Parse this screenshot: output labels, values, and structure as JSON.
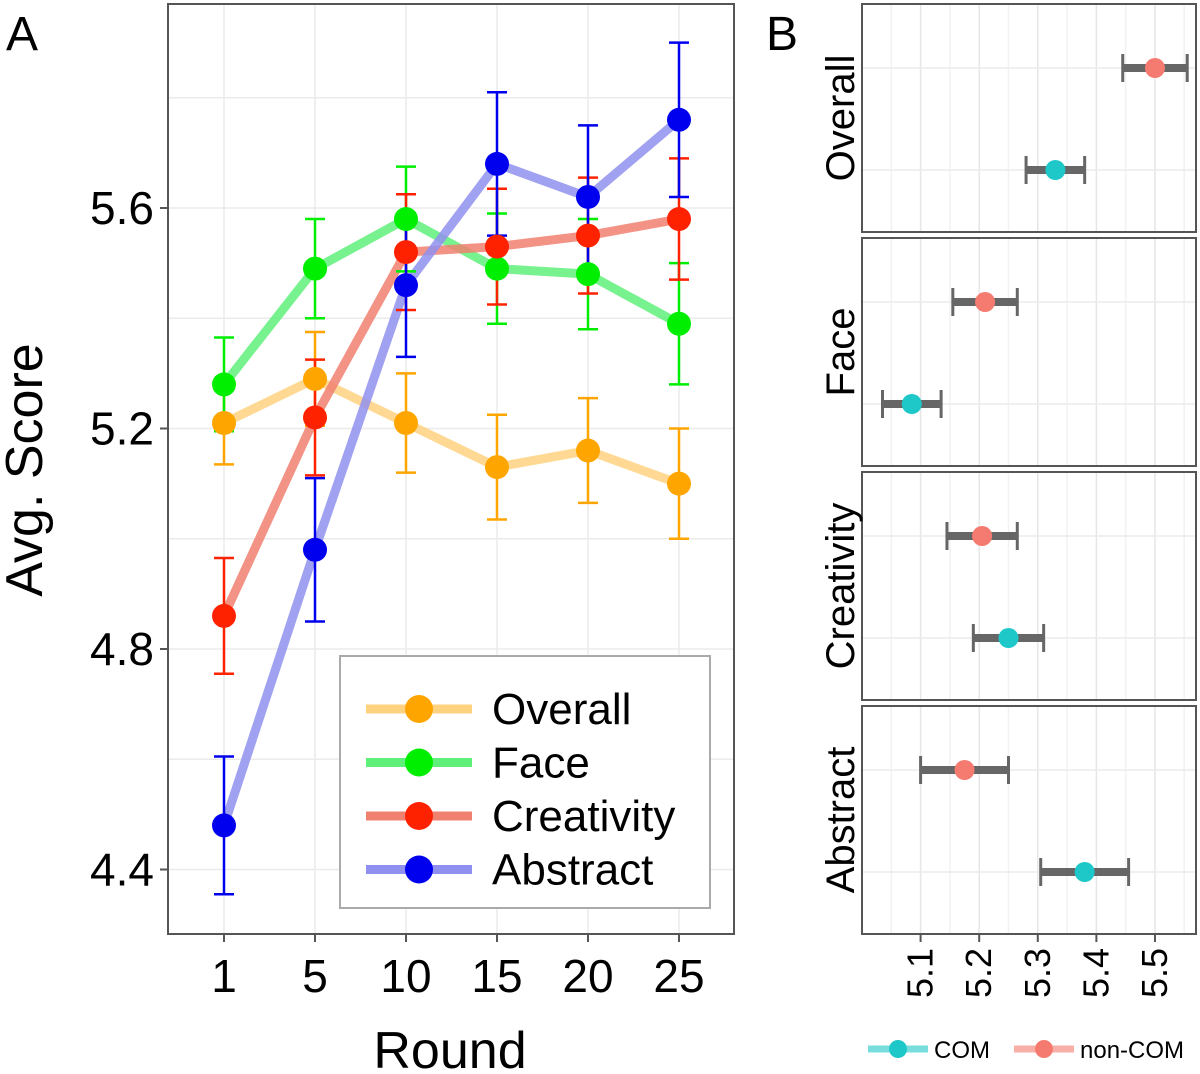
{
  "panel_a_label": "A",
  "panel_b_label": "B",
  "chart_data": [
    {
      "type": "line",
      "panel": "A",
      "title": "",
      "xlabel": "Round",
      "ylabel": "Avg. Score",
      "categories": [
        "1",
        "5",
        "10",
        "15",
        "20",
        "25"
      ],
      "ylim": [
        4.28,
        5.96
      ],
      "yticks": [
        4.4,
        4.8,
        5.2,
        5.6
      ],
      "ytick_labels": [
        "4.4",
        "4.8",
        "5.2",
        "5.6"
      ],
      "grid": true,
      "legend_position": "bottom-right",
      "series": [
        {
          "name": "Overall",
          "color": "#FFA500",
          "line_color": "#FFD280",
          "values": [
            5.21,
            5.29,
            5.21,
            5.13,
            5.16,
            5.1
          ],
          "err": [
            0.075,
            0.085,
            0.09,
            0.095,
            0.095,
            0.1
          ]
        },
        {
          "name": "Face",
          "color": "#00EE00",
          "line_color": "#5FF07A",
          "values": [
            5.28,
            5.49,
            5.58,
            5.49,
            5.48,
            5.39
          ],
          "err": [
            0.085,
            0.09,
            0.095,
            0.1,
            0.1,
            0.11
          ]
        },
        {
          "name": "Creativity",
          "color": "#FF2200",
          "line_color": "#F08070",
          "values": [
            4.86,
            5.22,
            5.52,
            5.53,
            5.55,
            5.58
          ],
          "err": [
            0.105,
            0.105,
            0.105,
            0.105,
            0.105,
            0.11
          ]
        },
        {
          "name": "Abstract",
          "color": "#0000EE",
          "line_color": "#9090F0",
          "values": [
            4.48,
            4.98,
            5.46,
            5.68,
            5.62,
            5.76
          ],
          "err": [
            0.125,
            0.13,
            0.13,
            0.13,
            0.13,
            0.14
          ]
        }
      ]
    },
    {
      "type": "scatter",
      "panel": "B",
      "xlim": [
        5.0,
        5.57
      ],
      "xticks": [
        5.1,
        5.2,
        5.3,
        5.4,
        5.5
      ],
      "xtick_labels": [
        "5.1",
        "5.2",
        "5.3",
        "5.4",
        "5.5"
      ],
      "grid": true,
      "legend_position": "bottom",
      "groups": [
        {
          "name": "COM",
          "color": "#1EC8C8"
        },
        {
          "name": "non-COM",
          "color": "#F57B70"
        }
      ],
      "facets": [
        {
          "name": "Overall",
          "points": [
            {
              "group": "non-COM",
              "value": 5.5,
              "low": 5.445,
              "high": 5.555
            },
            {
              "group": "COM",
              "value": 5.33,
              "low": 5.28,
              "high": 5.38
            }
          ]
        },
        {
          "name": "Face",
          "points": [
            {
              "group": "non-COM",
              "value": 5.21,
              "low": 5.155,
              "high": 5.265
            },
            {
              "group": "COM",
              "value": 5.085,
              "low": 5.035,
              "high": 5.135
            }
          ]
        },
        {
          "name": "Creativity",
          "points": [
            {
              "group": "non-COM",
              "value": 5.205,
              "low": 5.145,
              "high": 5.265
            },
            {
              "group": "COM",
              "value": 5.25,
              "low": 5.19,
              "high": 5.31
            }
          ]
        },
        {
          "name": "Abstract",
          "points": [
            {
              "group": "non-COM",
              "value": 5.175,
              "low": 5.1,
              "high": 5.25
            },
            {
              "group": "COM",
              "value": 5.38,
              "low": 5.305,
              "high": 5.455
            }
          ]
        }
      ]
    }
  ]
}
